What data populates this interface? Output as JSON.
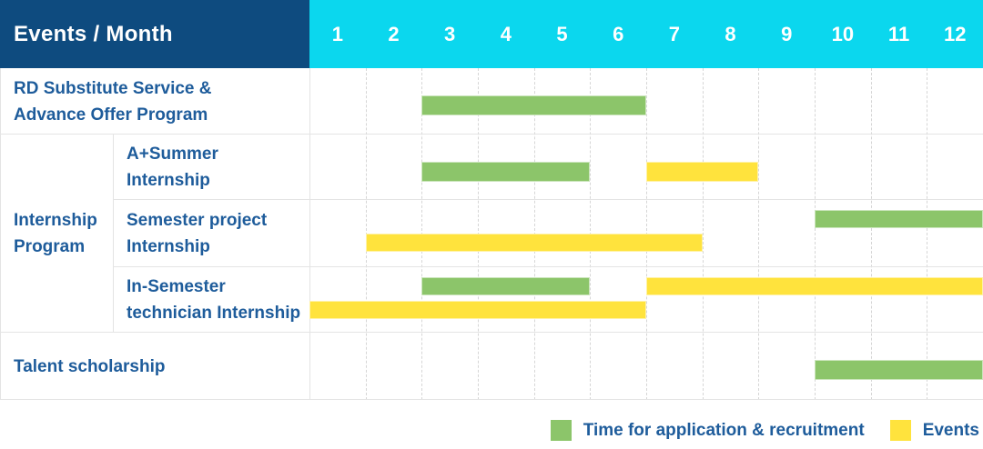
{
  "header": {
    "title": "Events / Month"
  },
  "colors": {
    "header_navy": "#0e4b7f",
    "header_cyan": "#0bd7ee",
    "bar_green": "#8cc56a",
    "bar_yellow": "#ffe33d",
    "label_blue": "#1e5c9b",
    "grid_gray": "#e4e4e4"
  },
  "labels": {
    "rd": {
      "line1": "RD Substitute Service &",
      "line2": "Advance Offer Program"
    },
    "group": {
      "line1": "Internship",
      "line2": "Program"
    },
    "a_summer": {
      "line1": "A+Summer",
      "line2": "Internship"
    },
    "semester_project": {
      "line1": "Semester project",
      "line2": "Internship"
    },
    "in_semester": {
      "line1": "In-Semester",
      "line2": "technician Internship"
    },
    "talent": {
      "line1": "Talent scholarship"
    }
  },
  "chart_data": {
    "type": "gantt",
    "title": "Events / Month",
    "x_unit": "month",
    "months": [
      "1",
      "2",
      "3",
      "4",
      "5",
      "6",
      "7",
      "8",
      "9",
      "10",
      "11",
      "12"
    ],
    "x_range": [
      1,
      12
    ],
    "legend_position": "bottom-right",
    "legend": [
      {
        "label": "Time for application & recruitment",
        "color": "green"
      },
      {
        "label": "Events",
        "color": "yellow"
      }
    ],
    "rows": [
      {
        "label": "RD Substitute Service & Advance Offer Program",
        "group": null,
        "bars": [
          {
            "color": "green",
            "start_month": 3,
            "end_month": 6,
            "lane": "mid"
          }
        ]
      },
      {
        "label": "A+Summer Internship",
        "group": "Internship Program",
        "bars": [
          {
            "color": "green",
            "start_month": 3,
            "end_month": 5,
            "lane": "mid"
          },
          {
            "color": "yellow",
            "start_month": 7,
            "end_month": 8,
            "lane": "mid"
          }
        ]
      },
      {
        "label": "Semester project Internship",
        "group": "Internship Program",
        "bars": [
          {
            "color": "green",
            "start_month": 10,
            "end_month": 12,
            "lane": "top"
          },
          {
            "color": "yellow",
            "start_month": 2,
            "end_month": 7,
            "lane": "bottom"
          }
        ]
      },
      {
        "label": "In-Semester technician Internship",
        "group": "Internship Program",
        "bars": [
          {
            "color": "green",
            "start_month": 3,
            "end_month": 5,
            "lane": "top"
          },
          {
            "color": "yellow",
            "start_month": 7,
            "end_month": 12,
            "lane": "top"
          },
          {
            "color": "yellow",
            "start_month": 1,
            "end_month": 6,
            "lane": "bottom"
          }
        ]
      },
      {
        "label": "Talent scholarship",
        "group": null,
        "bars": [
          {
            "color": "green",
            "start_month": 10,
            "end_month": 12,
            "lane": "mid"
          }
        ]
      }
    ]
  }
}
